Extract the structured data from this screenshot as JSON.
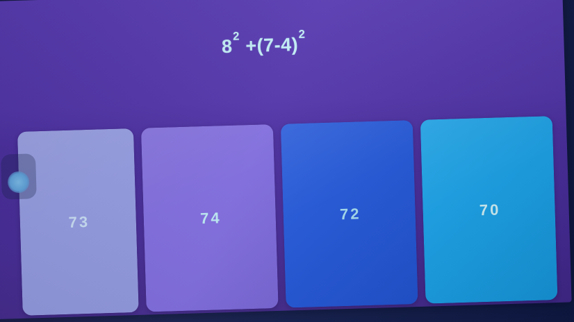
{
  "question": {
    "text": "8² +(7-4)²",
    "base": "8",
    "exponent1": "2",
    "middle": " +(7-4)",
    "exponent2": "2"
  },
  "answers": [
    {
      "label": "73",
      "bg": "#939BE1",
      "fg": "#C8DDF2"
    },
    {
      "label": "74",
      "bg": "#7D69DB",
      "fg": "#B8E4EE"
    },
    {
      "label": "72",
      "bg": "#2156D8",
      "fg": "#A5DCEE"
    },
    {
      "label": "70",
      "bg": "#18A4EA",
      "fg": "#D3F4F8"
    }
  ],
  "colors": {
    "question_text": "#C2ECF4",
    "screen_top_purple": "#5B3EB3",
    "screen_bottom_purple": "#422989",
    "bezel_dark": "#131E4C"
  },
  "icons": {
    "avatar_chip": "circle-avatar-placeholder"
  }
}
